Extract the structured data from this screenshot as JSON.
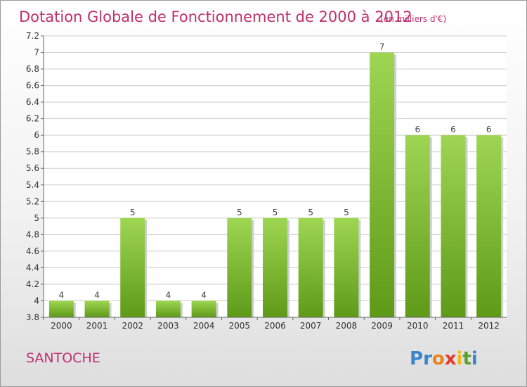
{
  "chart_data": {
    "type": "bar",
    "title": "Dotation Globale de Fonctionnement de 2000 à 2012",
    "subtitle": "(en milliers d'€)",
    "categories": [
      "2000",
      "2001",
      "2002",
      "2003",
      "2004",
      "2005",
      "2006",
      "2007",
      "2008",
      "2009",
      "2010",
      "2011",
      "2012"
    ],
    "values": [
      4,
      4,
      5,
      4,
      4,
      5,
      5,
      5,
      5,
      7,
      6,
      6,
      6
    ],
    "ylim": [
      3.8,
      7.2
    ],
    "yticks": [
      3.8,
      4,
      4.2,
      4.4,
      4.6,
      4.8,
      5,
      5.2,
      5.4,
      5.6,
      5.8,
      6,
      6.2,
      6.4,
      6.6,
      6.8,
      7,
      7.2
    ],
    "grid": true,
    "bar_color_top": "#9ed653",
    "bar_color_bottom": "#5e9a18"
  },
  "footer": {
    "town": "SANTOCHE",
    "logo_letters": [
      "P",
      "r",
      "o",
      "x",
      "i",
      "t",
      "i"
    ],
    "logo_colors": [
      "#3a86c8",
      "#3a86c8",
      "#e8831c",
      "#e23a2b",
      "#f0b81c",
      "#5aa02c",
      "#3a86c8"
    ]
  }
}
